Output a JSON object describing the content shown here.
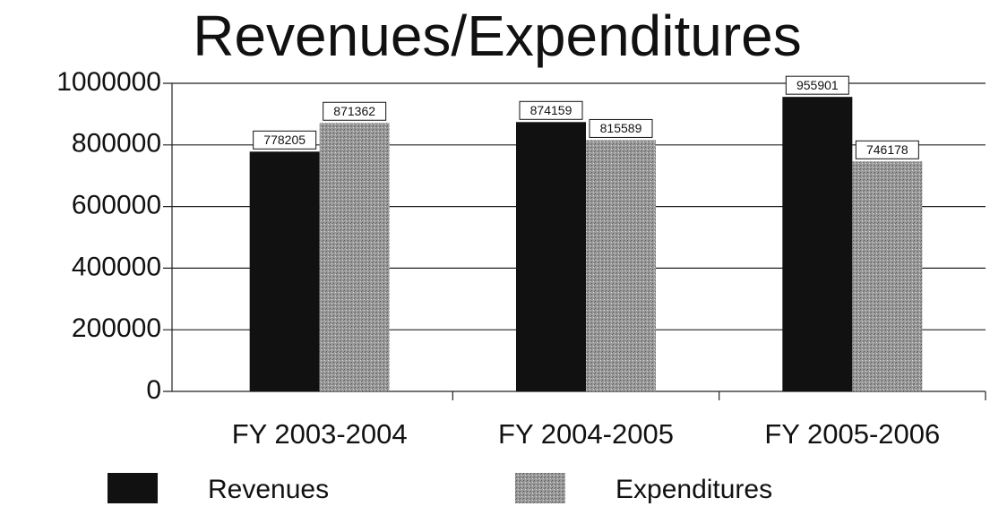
{
  "chart_data": {
    "type": "bar",
    "title": "Revenues/Expenditures",
    "categories": [
      "FY 2003-2004",
      "FY 2004-2005",
      "FY 2005-2006"
    ],
    "series": [
      {
        "name": "Revenues",
        "color": "#111111",
        "values": [
          778205,
          874159,
          955901
        ]
      },
      {
        "name": "Expenditures",
        "color": "#9a9a9a",
        "values": [
          871362,
          815589,
          746178
        ]
      }
    ],
    "ylim": [
      0,
      1000000
    ],
    "yticks": [
      0,
      200000,
      400000,
      600000,
      800000,
      1000000
    ],
    "grid": true,
    "legend": "bottom"
  }
}
